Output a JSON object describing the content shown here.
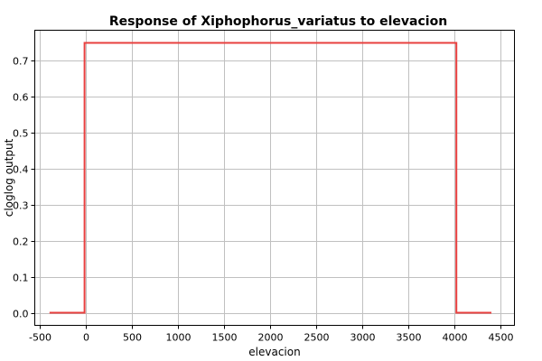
{
  "chart_data": {
    "type": "line",
    "title": "Response of Xiphophorus_variatus to elevacion",
    "xlabel": "elevacion",
    "ylabel": "cloglog output",
    "xlim": [
      -550,
      4650
    ],
    "ylim": [
      -0.035,
      0.785
    ],
    "xticks": [
      -500,
      0,
      500,
      1000,
      1500,
      2000,
      2500,
      3000,
      3500,
      4000,
      4500
    ],
    "yticks": [
      0.0,
      0.1,
      0.2,
      0.3,
      0.4,
      0.5,
      0.6,
      0.7
    ],
    "ytick_labels": [
      "0.0",
      "0.1",
      "0.2",
      "0.3",
      "0.4",
      "0.5",
      "0.6",
      "0.7"
    ],
    "grid": true,
    "legend": "none",
    "series": [
      {
        "color": "#e8403f",
        "x": [
          -390,
          -10,
          -10,
          4020,
          4020,
          4400
        ],
        "y": [
          0.0,
          0.0,
          0.75,
          0.75,
          0.0,
          0.0
        ]
      }
    ]
  }
}
